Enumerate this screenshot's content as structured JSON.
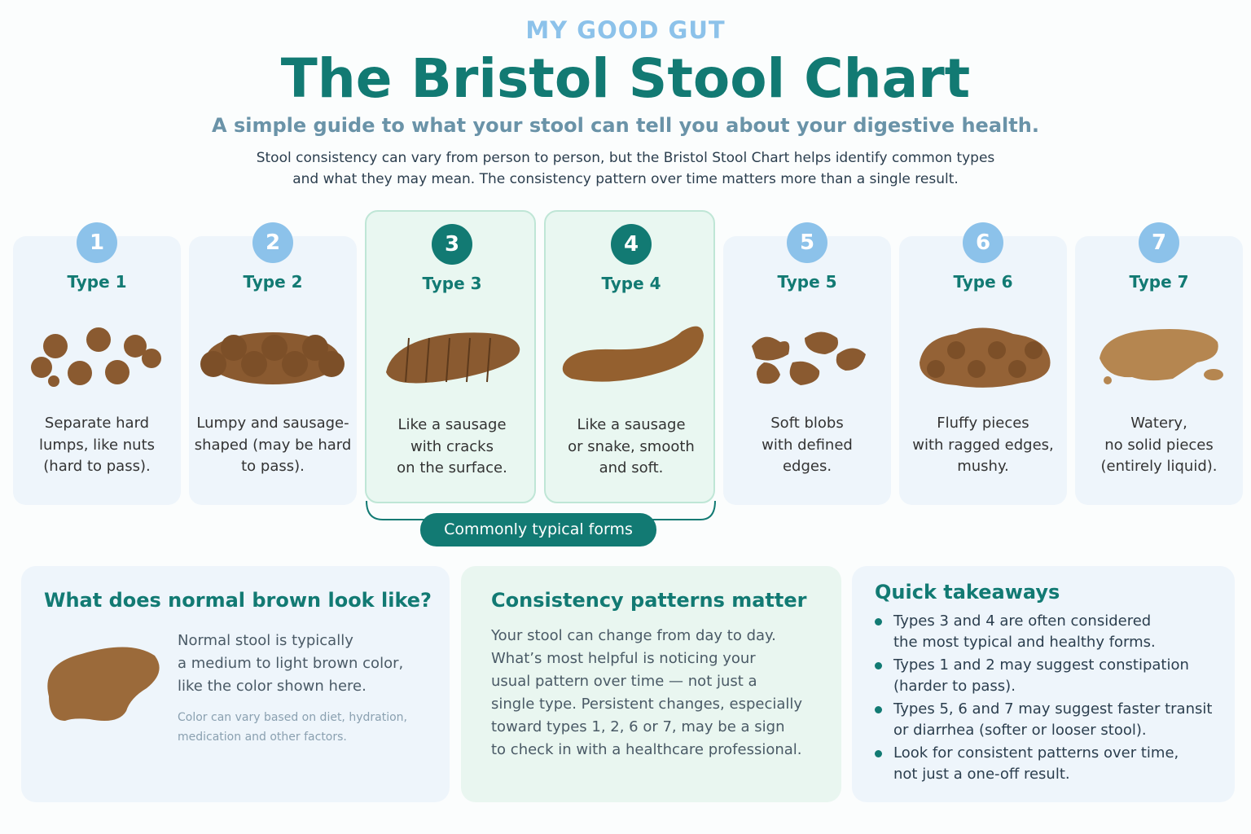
{
  "header": {
    "brand": "MY GOOD GUT",
    "title": "The Bristol Stool Chart",
    "subtitle": "A simple guide to what your stool can tell you about your digestive health.",
    "intro": [
      "Stool consistency can vary from person to person, but the Bristol Stool Chart helps identify common types",
      "and what they may mean. The consistency pattern over time matters more than a single result."
    ]
  },
  "types": [
    {
      "number": "1",
      "name": "Type 1",
      "description": [
        "Separate hard",
        "lumps, like nuts",
        "(hard to pass)."
      ]
    },
    {
      "number": "2",
      "name": "Type 2",
      "description": [
        "Lumpy and sausage-",
        "shaped (may be hard",
        "to pass)."
      ]
    },
    {
      "number": "3",
      "name": "Type 3",
      "description": [
        "Like a sausage",
        "with cracks",
        "on the surface."
      ]
    },
    {
      "number": "4",
      "name": "Type 4",
      "description": [
        "Like a sausage",
        "or snake, smooth",
        "and soft."
      ]
    },
    {
      "number": "5",
      "name": "Type 5",
      "description": [
        "Soft blobs",
        "with defined",
        "edges."
      ]
    },
    {
      "number": "6",
      "name": "Type 6",
      "description": [
        "Fluffy pieces",
        "with ragged edges,",
        "mushy."
      ]
    },
    {
      "number": "7",
      "name": "Type 7",
      "description": [
        "Watery,",
        "no solid pieces",
        "(entirely liquid)."
      ]
    }
  ],
  "typical_label": "Commonly typical forms",
  "panels": {
    "normal_brown": {
      "title": "What does normal brown look like?",
      "body": [
        "Normal stool is typically",
        "a medium to light brown color,",
        "like the color shown here."
      ],
      "note": [
        "Color can vary based on diet, hydration,",
        "medication and other factors."
      ]
    },
    "patterns": {
      "title": "Consistency patterns matter",
      "body": [
        "Your stool can change from day to day.",
        "What’s most helpful is noticing your",
        "usual pattern over time — not just a",
        "single type. Persistent changes, especially",
        "toward types 1, 2, 6 or 7, may be a sign",
        "to check in with a healthcare professional."
      ]
    },
    "takeaways": {
      "title": "Quick takeaways",
      "items": [
        [
          "Types 3 and 4 are often considered",
          "the most typical and healthy forms."
        ],
        [
          "Types 1 and 2 may suggest constipation",
          "(harder to pass)."
        ],
        [
          "Types 5, 6 and 7 may suggest faster transit",
          "or diarrhea (softer or looser stool)."
        ],
        [
          "Look for consistent patterns over time,",
          "not just a one-off result."
        ]
      ]
    }
  }
}
